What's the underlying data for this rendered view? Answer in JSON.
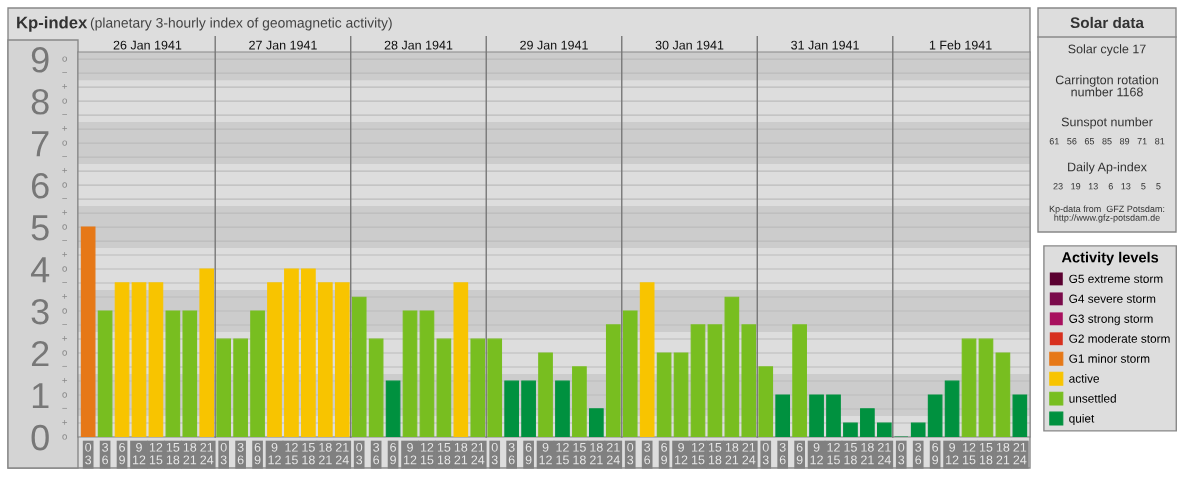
{
  "chart_data": [
    {
      "type": "bar",
      "title": "Kp-index",
      "subtitle": "(planetary 3-hourly index of geomagnetic activity)",
      "categories": [
        "0\n3",
        "3\n6",
        "6\n9",
        "9\n12",
        "12\n15",
        "15\n18",
        "18\n21",
        "21\n24",
        "0\n3",
        "3\n6",
        "6\n9",
        "9\n12",
        "12\n15",
        "15\n18",
        "18\n21",
        "21\n24",
        "0\n3",
        "3\n6",
        "6\n9",
        "9\n12",
        "12\n15",
        "15\n18",
        "18\n21",
        "21\n24",
        "0\n3",
        "3\n6",
        "6\n9",
        "9\n12",
        "12\n15",
        "15\n18",
        "18\n21",
        "21\n24",
        "0\n3",
        "3\n6",
        "6\n9",
        "9\n12",
        "12\n15",
        "15\n18",
        "18\n21",
        "21\n24",
        "0\n3",
        "3\n6",
        "6\n9",
        "9\n12",
        "12\n15",
        "15\n18",
        "18\n21",
        "21\n24",
        "0\n3",
        "3\n6",
        "6\n9",
        "9\n12",
        "12\n15",
        "15\n18",
        "18\n21",
        "21\n24"
      ],
      "annotations": [
        "26 Jan 1941",
        "27 Jan 1941",
        "28 Jan 1941",
        "29 Jan 1941",
        "30 Jan 1941",
        "31 Jan 1941",
        "1 Feb 1941",
        "o",
        "+",
        "−",
        "o",
        "+",
        "−",
        "o",
        "+",
        "−",
        "o",
        "+",
        "−",
        "o",
        "+",
        "−",
        "o",
        "+",
        "−",
        "o",
        "+",
        "−",
        "o",
        "+",
        "−",
        "o",
        "+",
        "−",
        "o"
      ],
      "series": [
        {
          "name": "G5 extreme storm",
          "color": "#5a0030",
          "values": [
            null,
            null,
            null,
            null,
            null,
            null,
            null,
            null,
            null,
            null,
            null,
            null,
            null,
            null,
            null,
            null,
            null,
            null,
            null,
            null,
            null,
            null,
            null,
            null,
            null,
            null,
            null,
            null,
            null,
            null,
            null,
            null,
            null,
            null,
            null,
            null,
            null,
            null,
            null,
            null,
            null,
            null,
            null,
            null,
            null,
            null,
            null,
            null,
            null,
            null,
            null,
            null,
            null,
            null,
            null,
            null
          ]
        },
        {
          "name": "G4 severe storm",
          "color": "#7a0a4a",
          "values": [
            null,
            null,
            null,
            null,
            null,
            null,
            null,
            null,
            null,
            null,
            null,
            null,
            null,
            null,
            null,
            null,
            null,
            null,
            null,
            null,
            null,
            null,
            null,
            null,
            null,
            null,
            null,
            null,
            null,
            null,
            null,
            null,
            null,
            null,
            null,
            null,
            null,
            null,
            null,
            null,
            null,
            null,
            null,
            null,
            null,
            null,
            null,
            null,
            null,
            null,
            null,
            null,
            null,
            null,
            null,
            null
          ]
        },
        {
          "name": "G3 strong storm",
          "color": "#a8105e",
          "values": [
            null,
            null,
            null,
            null,
            null,
            null,
            null,
            null,
            null,
            null,
            null,
            null,
            null,
            null,
            null,
            null,
            null,
            null,
            null,
            null,
            null,
            null,
            null,
            null,
            null,
            null,
            null,
            null,
            null,
            null,
            null,
            null,
            null,
            null,
            null,
            null,
            null,
            null,
            null,
            null,
            null,
            null,
            null,
            null,
            null,
            null,
            null,
            null,
            null,
            null,
            null,
            null,
            null,
            null,
            null,
            null
          ]
        },
        {
          "name": "G2 moderate storm",
          "color": "#d7301f",
          "values": [
            null,
            null,
            null,
            null,
            null,
            null,
            null,
            null,
            null,
            null,
            null,
            null,
            null,
            null,
            null,
            null,
            null,
            null,
            null,
            null,
            null,
            null,
            null,
            null,
            null,
            null,
            null,
            null,
            null,
            null,
            null,
            null,
            null,
            null,
            null,
            null,
            null,
            null,
            null,
            null,
            null,
            null,
            null,
            null,
            null,
            null,
            null,
            null,
            null,
            null,
            null,
            null,
            null,
            null,
            null,
            null
          ]
        },
        {
          "name": "G1 minor storm",
          "color": "#e67817",
          "values": [
            5,
            null,
            null,
            null,
            null,
            null,
            null,
            null,
            null,
            null,
            null,
            null,
            null,
            null,
            null,
            null,
            null,
            null,
            null,
            null,
            null,
            null,
            null,
            null,
            null,
            null,
            null,
            null,
            null,
            null,
            null,
            null,
            null,
            null,
            null,
            null,
            null,
            null,
            null,
            null,
            null,
            null,
            null,
            null,
            null,
            null,
            null,
            null,
            null,
            null,
            null,
            null,
            null,
            null,
            null,
            null
          ]
        },
        {
          "name": "active",
          "color": "#f8c400",
          "values": [
            null,
            null,
            3.67,
            3.67,
            3.67,
            null,
            null,
            4,
            null,
            null,
            null,
            3.67,
            4,
            4,
            3.67,
            3.67,
            null,
            null,
            null,
            null,
            null,
            null,
            3.67,
            null,
            null,
            null,
            null,
            null,
            null,
            null,
            null,
            null,
            null,
            3.67,
            null,
            null,
            null,
            null,
            null,
            null,
            null,
            null,
            null,
            null,
            null,
            null,
            null,
            null,
            null,
            null,
            null,
            null,
            null,
            null,
            null,
            null
          ]
        },
        {
          "name": "unsettled",
          "color": "#78be20",
          "values": [
            null,
            3,
            null,
            null,
            null,
            3,
            3,
            null,
            2.33,
            2.33,
            3,
            null,
            null,
            null,
            null,
            null,
            3.33,
            2.33,
            null,
            3,
            3,
            2.33,
            null,
            2.33,
            2.33,
            null,
            null,
            2,
            null,
            1.67,
            null,
            2.67,
            3,
            null,
            2,
            2,
            2.67,
            2.67,
            3.33,
            2.67,
            1.67,
            null,
            2.67,
            null,
            null,
            null,
            null,
            null,
            null,
            null,
            null,
            null,
            2.33,
            2.33,
            2,
            null
          ]
        },
        {
          "name": "quiet",
          "color": "#00913f",
          "values": [
            null,
            null,
            null,
            null,
            null,
            null,
            null,
            null,
            null,
            null,
            null,
            null,
            null,
            null,
            null,
            null,
            null,
            null,
            1.33,
            null,
            null,
            null,
            null,
            null,
            null,
            1.33,
            1.33,
            null,
            1.33,
            null,
            0.67,
            null,
            null,
            null,
            null,
            null,
            null,
            null,
            null,
            null,
            null,
            1,
            null,
            1,
            1,
            0.33,
            0.67,
            0.33,
            0,
            0.33,
            1,
            1.33,
            null,
            null,
            null,
            1
          ]
        }
      ],
      "ylim": [
        0,
        9.17
      ],
      "yticks": [
        0,
        1,
        2,
        3,
        4,
        5,
        6,
        7,
        8,
        9
      ],
      "bands": [
        {
          "axis": "y",
          "from": 0.5,
          "to": 1.5,
          "color": "#cccccc"
        },
        {
          "axis": "y",
          "from": 2.5,
          "to": 3.5,
          "color": "#cccccc"
        },
        {
          "axis": "y",
          "from": 4.5,
          "to": 5.5,
          "color": "#cccccc"
        },
        {
          "axis": "y",
          "from": 6.5,
          "to": 7.5,
          "color": "#cccccc"
        },
        {
          "axis": "y",
          "from": 8.5,
          "to": 9.17,
          "color": "#cccccc"
        }
      ],
      "grid": "y",
      "legend": "right",
      "legend_title": "Activity levels"
    },
    {
      "type": "other",
      "title": "Solar data",
      "annotations": [
        "Solar cycle 17",
        "Carrington rotation\nnumber 1168",
        "Sunspot number",
        "61   56   65   85   89   71   81",
        "Daily Ap-index",
        "23   19   13    6   13    5    5",
        "Kp-data from  GFZ Potsdam:\nhttp://www.gfz-potsdam.de"
      ]
    }
  ]
}
